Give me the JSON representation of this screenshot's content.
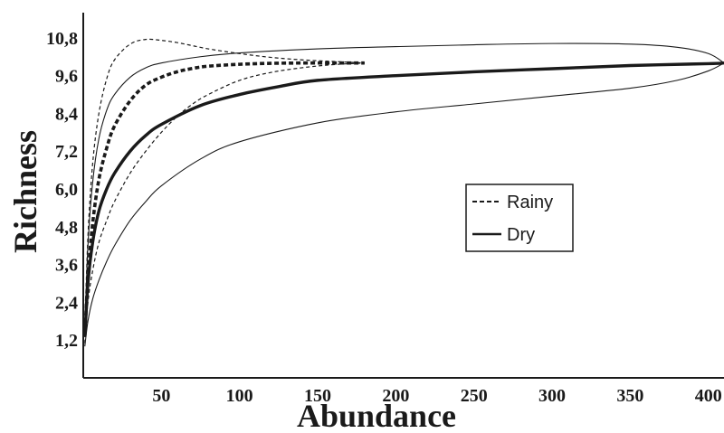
{
  "chart_data": {
    "type": "line",
    "xlabel": "Abundance",
    "ylabel": "Richness",
    "xlim": [
      0,
      410
    ],
    "ylim": [
      0,
      11.6
    ],
    "x_ticks": [
      50,
      100,
      150,
      200,
      250,
      300,
      350,
      400
    ],
    "x_tick_labels": [
      "50",
      "100",
      "150",
      "200",
      "250",
      "300",
      "350",
      "400"
    ],
    "y_ticks": [
      1.2,
      2.4,
      3.6,
      4.8,
      6.0,
      7.2,
      8.4,
      9.6,
      10.8
    ],
    "y_tick_labels": [
      "1,2",
      "2,4",
      "3,6",
      "4,8",
      "6,0",
      "7,2",
      "8,4",
      "9,6",
      "10,8"
    ],
    "grid": false,
    "legend": {
      "placement": "center-right",
      "entries": [
        {
          "label": "Rainy",
          "style": "dashed"
        },
        {
          "label": "Dry",
          "style": "solid"
        }
      ]
    },
    "series": [
      {
        "name": "Rainy",
        "style": "dashed",
        "role": "estimate",
        "x": [
          1,
          3,
          6,
          10,
          15,
          20,
          30,
          40,
          50,
          60,
          70,
          80,
          100,
          120,
          140,
          160,
          180
        ],
        "y": [
          1.3,
          3.2,
          4.9,
          6.3,
          7.3,
          8.0,
          8.8,
          9.3,
          9.55,
          9.72,
          9.83,
          9.9,
          9.96,
          9.99,
          10.0,
          10.0,
          10.0
        ]
      },
      {
        "name": "Rainy",
        "style": "dashed",
        "role": "upper-bound",
        "x": [
          1,
          3,
          6,
          10,
          15,
          20,
          30,
          40,
          50,
          60,
          70,
          80,
          100,
          120,
          140,
          160,
          180
        ],
        "y": [
          1.5,
          4.5,
          6.8,
          8.4,
          9.5,
          10.1,
          10.6,
          10.75,
          10.72,
          10.65,
          10.55,
          10.45,
          10.3,
          10.18,
          10.1,
          10.05,
          10.0
        ]
      },
      {
        "name": "Rainy",
        "style": "dashed",
        "role": "lower-bound",
        "x": [
          1,
          3,
          6,
          10,
          15,
          20,
          30,
          40,
          50,
          60,
          70,
          80,
          100,
          120,
          140,
          160,
          180
        ],
        "y": [
          1.1,
          2.4,
          3.4,
          4.3,
          5.0,
          5.6,
          6.5,
          7.2,
          7.8,
          8.3,
          8.7,
          9.0,
          9.45,
          9.7,
          9.85,
          9.95,
          10.0
        ]
      },
      {
        "name": "Dry",
        "style": "solid",
        "role": "estimate",
        "x": [
          1,
          3,
          6,
          10,
          15,
          20,
          30,
          40,
          50,
          75,
          100,
          125,
          150,
          200,
          250,
          300,
          350,
          400,
          410
        ],
        "y": [
          1.3,
          3.0,
          4.3,
          5.3,
          6.0,
          6.5,
          7.2,
          7.7,
          8.05,
          8.65,
          9.0,
          9.25,
          9.45,
          9.6,
          9.72,
          9.82,
          9.92,
          9.98,
          10.0
        ]
      },
      {
        "name": "Dry",
        "style": "solid",
        "role": "upper-bound",
        "x": [
          1,
          3,
          6,
          10,
          15,
          20,
          30,
          40,
          50,
          75,
          100,
          150,
          200,
          250,
          300,
          350,
          380,
          400,
          410
        ],
        "y": [
          1.5,
          4.2,
          6.2,
          7.6,
          8.5,
          9.0,
          9.55,
          9.85,
          10.0,
          10.2,
          10.32,
          10.45,
          10.52,
          10.58,
          10.62,
          10.6,
          10.5,
          10.3,
          10.0
        ]
      },
      {
        "name": "Dry",
        "style": "solid",
        "role": "lower-bound",
        "x": [
          1,
          3,
          6,
          10,
          15,
          20,
          30,
          40,
          50,
          75,
          100,
          150,
          200,
          250,
          300,
          350,
          380,
          400,
          410
        ],
        "y": [
          1.0,
          1.8,
          2.5,
          3.1,
          3.7,
          4.2,
          5.0,
          5.6,
          6.1,
          6.95,
          7.5,
          8.1,
          8.45,
          8.7,
          8.95,
          9.2,
          9.45,
          9.75,
          10.0
        ]
      }
    ]
  }
}
